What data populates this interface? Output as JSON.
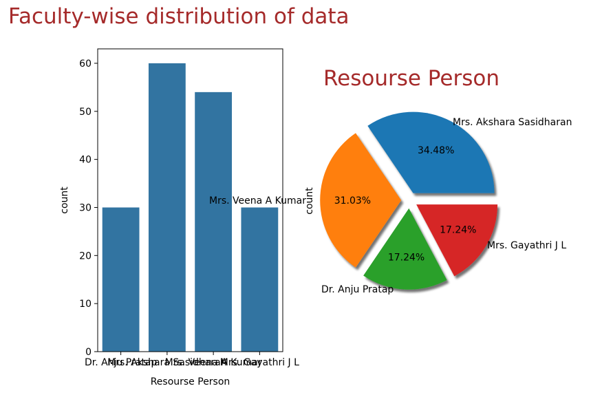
{
  "figure_title": "Faculty-wise distribution of data",
  "title_color": "#a52a2a",
  "chart_data": [
    {
      "type": "bar",
      "categories": [
        "Dr. Anju Pratap",
        "Mrs. Akshara Sasidharan",
        "Mrs. Veena A Kumar",
        "Mrs. Gayathri J L"
      ],
      "values": [
        30,
        60,
        54,
        30
      ],
      "xlabel": "Resourse Person",
      "ylabel": "count",
      "ylim": [
        0,
        63
      ],
      "yticks": [
        0,
        10,
        20,
        30,
        40,
        50,
        60
      ],
      "bar_color": "#3274a1",
      "grid": false
    },
    {
      "type": "pie",
      "title": "Resourse Person",
      "ylabel": "count",
      "slices": [
        {
          "label": "Mrs. Akshara Sasidharan",
          "value": 34.48,
          "pct": "34.48%",
          "color": "#1f77b4"
        },
        {
          "label": "Mrs. Veena A Kumar",
          "value": 31.03,
          "pct": "31.03%",
          "color": "#ff7f0e"
        },
        {
          "label": "Dr. Anju Pratap",
          "value": 17.24,
          "pct": "17.24%",
          "color": "#2ca02c"
        },
        {
          "label": "Mrs. Gayathri J L",
          "value": 17.24,
          "pct": "17.24%",
          "color": "#d62728"
        }
      ],
      "explode": true,
      "shadow": true
    }
  ]
}
